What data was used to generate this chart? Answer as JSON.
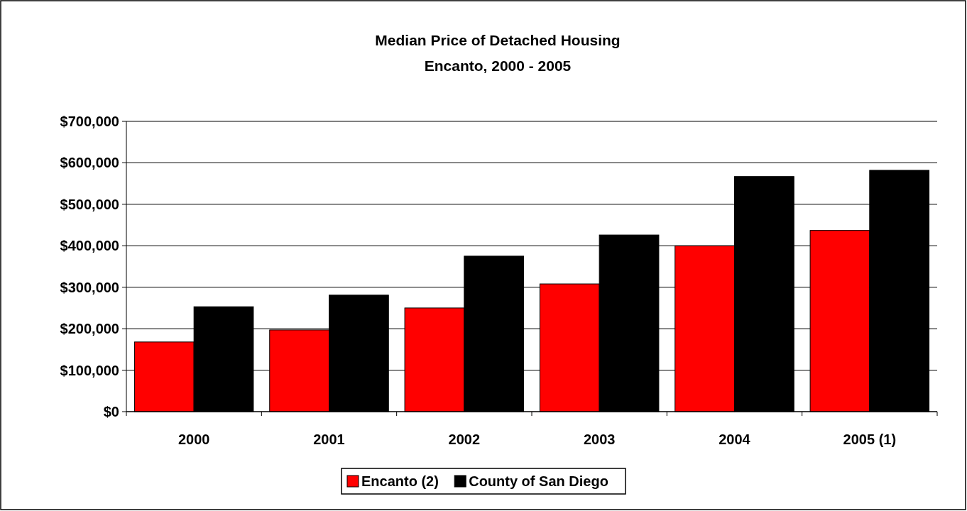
{
  "chart_data": {
    "type": "bar",
    "title": "Median Price of Detached Housing",
    "subtitle": "Encanto, 2000 - 2005",
    "categories": [
      "2000",
      "2001",
      "2002",
      "2003",
      "2004",
      "2005 (1)"
    ],
    "series": [
      {
        "name": "Encanto (2)",
        "color": "#ff0000",
        "values": [
          168000,
          197000,
          250000,
          308000,
          400000,
          437000
        ]
      },
      {
        "name": "County of San Diego",
        "color": "#000000",
        "values": [
          253000,
          281000,
          375000,
          426000,
          567000,
          582000
        ]
      }
    ],
    "ylim": [
      0,
      700000
    ],
    "yticks": [
      {
        "value": 0,
        "label": "$0"
      },
      {
        "value": 100000,
        "label": "$100,000"
      },
      {
        "value": 200000,
        "label": "$200,000"
      },
      {
        "value": 300000,
        "label": "$300,000"
      },
      {
        "value": 400000,
        "label": "$400,000"
      },
      {
        "value": 500000,
        "label": "$500,000"
      },
      {
        "value": 600000,
        "label": "$600,000"
      },
      {
        "value": 700000,
        "label": "$700,000"
      }
    ],
    "grid": "y",
    "legend": "bottom"
  }
}
